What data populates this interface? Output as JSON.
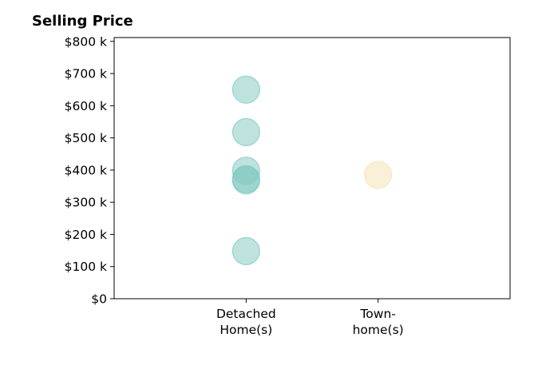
{
  "chart_data": {
    "type": "scatter",
    "title": "Selling Price",
    "xlabel": "",
    "ylabel": "",
    "ylim": [
      0,
      812
    ],
    "y_ticks": [
      0,
      100,
      200,
      300,
      400,
      500,
      600,
      700,
      800
    ],
    "y_tick_labels": [
      "$0",
      "$100 k",
      "$200 k",
      "$300 k",
      "$400 k",
      "$500 k",
      "$600 k",
      "$700 k",
      "$800 k"
    ],
    "x_range": [
      -1,
      2
    ],
    "categories": [
      {
        "label_lines": [
          "Detached",
          "Home(s)"
        ],
        "color": "#7ec8c0"
      },
      {
        "label_lines": [
          "Town-",
          "home(s)"
        ],
        "color": "#f5e0b0"
      }
    ],
    "series": [
      {
        "category_index": 0,
        "values": [
          650,
          518,
          398,
          372,
          368,
          148
        ]
      },
      {
        "category_index": 1,
        "values": [
          385
        ]
      }
    ],
    "grid": false,
    "legend": "none"
  }
}
